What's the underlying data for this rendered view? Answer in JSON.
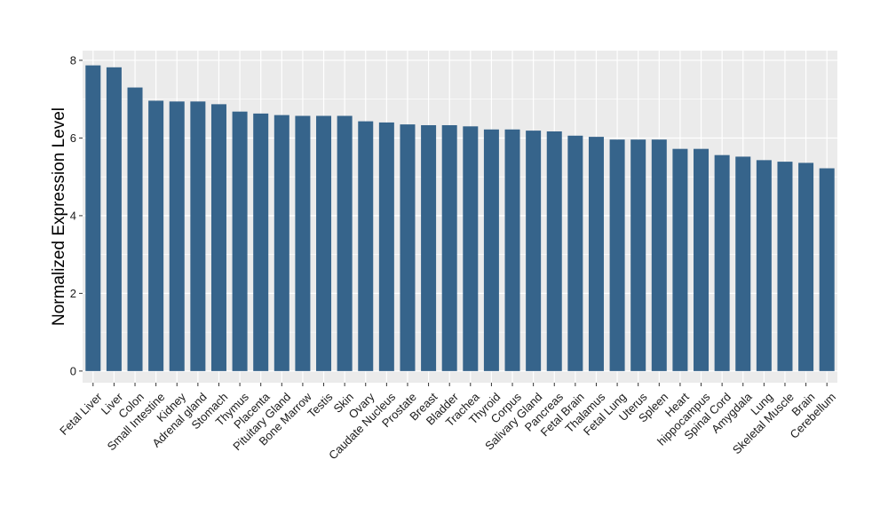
{
  "chart_data": {
    "type": "bar",
    "title": "",
    "xlabel": "",
    "ylabel": "Normalized Expression Level",
    "ylim": [
      -0.3,
      8.25
    ],
    "yticks": [
      0,
      2,
      4,
      6,
      8
    ],
    "grid": true,
    "bar_color": "#36648b",
    "panel_color": "#ebebeb",
    "gridline_color": "#ffffff",
    "categories": [
      "Fetal Liver",
      "Liver",
      "Colon",
      "Small Intestine",
      "Kidney",
      "Adrenal gland",
      "Stomach",
      "Thymus",
      "Placenta",
      "Pituitary Gland",
      "Bone Marrow",
      "Testis",
      "Skin",
      "Ovary",
      "Caudate Nucleus",
      "Prostate",
      "Breast",
      "Bladder",
      "Trachea",
      "Thyroid",
      "Corpus",
      "Salivary Gland",
      "Pancreas",
      "Fetal Brain",
      "Thalamus",
      "Fetal Lung",
      "Uterus",
      "Spleen",
      "Heart",
      "hippocampus",
      "Spinal Cord",
      "Amygdala",
      "Lung",
      "Skeletal Muscle",
      "Brain",
      "Cerebellum"
    ],
    "values": [
      7.87,
      7.82,
      7.3,
      6.96,
      6.94,
      6.94,
      6.87,
      6.68,
      6.63,
      6.59,
      6.57,
      6.57,
      6.57,
      6.43,
      6.4,
      6.35,
      6.33,
      6.33,
      6.3,
      6.22,
      6.22,
      6.19,
      6.17,
      6.06,
      6.03,
      5.96,
      5.96,
      5.96,
      5.72,
      5.72,
      5.56,
      5.52,
      5.43,
      5.39,
      5.36,
      5.22
    ]
  }
}
